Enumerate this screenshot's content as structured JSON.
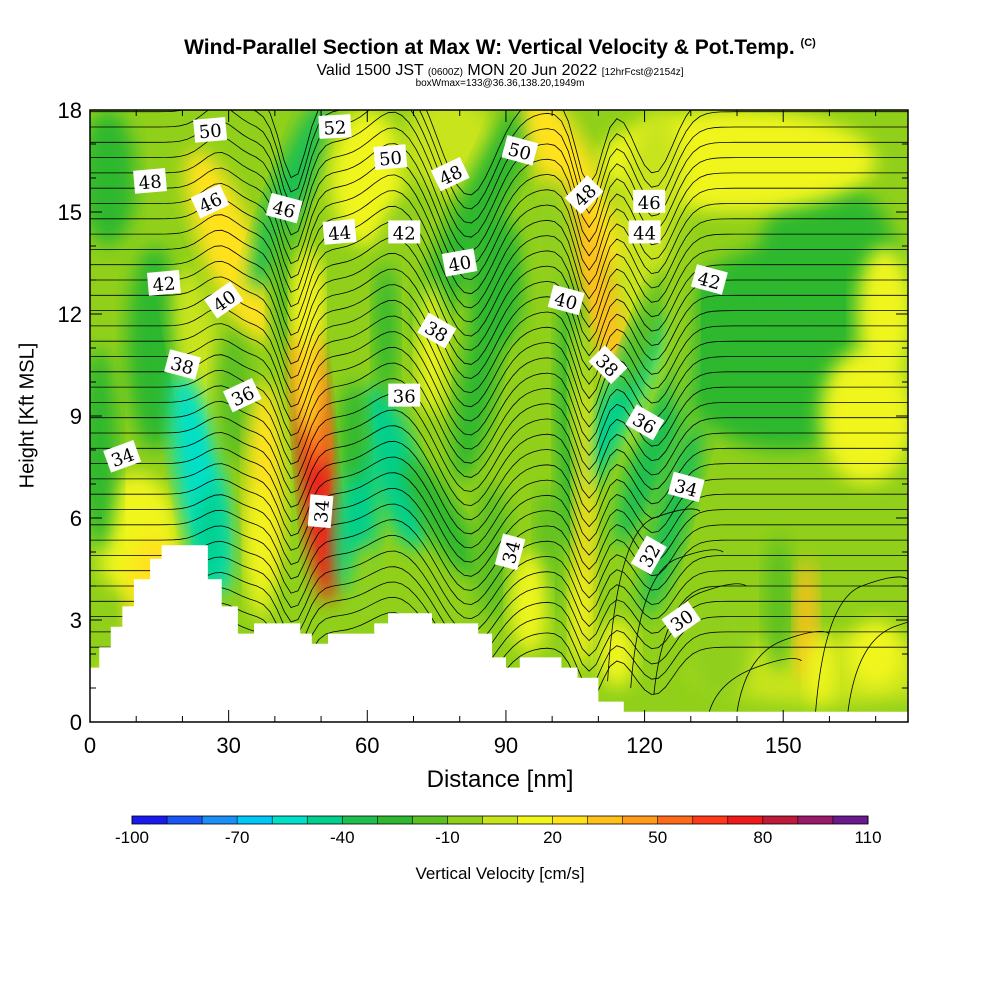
{
  "title": "Wind-Parallel Section at Max W: Vertical Velocity & Pot.Temp.",
  "title_mark": "(C)",
  "subtitle_prefix": "Valid 1500 JST",
  "subtitle_utc": "(0600Z)",
  "subtitle_date": "MON 20 Jun 2022",
  "subtitle_fcst": "[12hrFcst@2154z]",
  "subtitle2": "boxWmax=133@36.36,138.20,1949m",
  "chart_data": {
    "type": "heatmap",
    "title": "Wind-Parallel Section at Max W: Vertical Velocity & Pot.Temp.",
    "xlabel": "Distance [nm]",
    "ylabel": "Height [Kft MSL]",
    "xlim": [
      0,
      177
    ],
    "ylim": [
      0,
      18
    ],
    "x_ticks": [
      "0",
      "30",
      "60",
      "90",
      "120",
      "150"
    ],
    "x_tick_values": [
      0,
      30,
      60,
      90,
      120,
      150
    ],
    "y_ticks": [
      "0",
      "3",
      "6",
      "9",
      "12",
      "15",
      "18"
    ],
    "y_tick_values": [
      0,
      3,
      6,
      9,
      12,
      15,
      18
    ],
    "colorbar": {
      "title": "Vertical Velocity [cm/s]",
      "tick_labels": [
        "-100",
        "-70",
        "-40",
        "-10",
        "20",
        "50",
        "80",
        "110"
      ],
      "levels": [
        -100,
        -90,
        -80,
        -70,
        -60,
        -50,
        -40,
        -30,
        -20,
        -10,
        0,
        10,
        20,
        30,
        40,
        50,
        60,
        70,
        80,
        90,
        100,
        110
      ],
      "colors": [
        "#1a1aef",
        "#1a55f5",
        "#1a8ff8",
        "#00c8f8",
        "#00e0c8",
        "#00d08c",
        "#1fbf4f",
        "#2fb82f",
        "#5cc020",
        "#90d01a",
        "#c8e41a",
        "#f0f51a",
        "#ffe21a",
        "#ffc01a",
        "#ff9a1a",
        "#ff6a1a",
        "#ff3a1a",
        "#ef1a1a",
        "#c01a3a",
        "#9a1a6a",
        "#6a1a8f"
      ]
    },
    "terrain_kft": [
      [
        0,
        1.6
      ],
      [
        2,
        1.6
      ],
      [
        2,
        2.2
      ],
      [
        4.5,
        2.2
      ],
      [
        4.5,
        2.8
      ],
      [
        7,
        2.8
      ],
      [
        7,
        3.4
      ],
      [
        9.5,
        3.4
      ],
      [
        9.5,
        4.2
      ],
      [
        13,
        4.2
      ],
      [
        13,
        4.8
      ],
      [
        15.5,
        4.8
      ],
      [
        15.5,
        5.2
      ],
      [
        25.5,
        5.2
      ],
      [
        25.5,
        4.2
      ],
      [
        28.5,
        4.2
      ],
      [
        28.5,
        3.4
      ],
      [
        32,
        3.4
      ],
      [
        32,
        2.6
      ],
      [
        35.5,
        2.6
      ],
      [
        35.5,
        2.9
      ],
      [
        45.5,
        2.9
      ],
      [
        45.5,
        2.6
      ],
      [
        48,
        2.6
      ],
      [
        48,
        2.3
      ],
      [
        51.5,
        2.3
      ],
      [
        51.5,
        2.6
      ],
      [
        61.5,
        2.6
      ],
      [
        61.5,
        2.9
      ],
      [
        64.5,
        2.9
      ],
      [
        64.5,
        3.2
      ],
      [
        74,
        3.2
      ],
      [
        74,
        2.9
      ],
      [
        84,
        2.9
      ],
      [
        84,
        2.6
      ],
      [
        87,
        2.6
      ],
      [
        87,
        1.9
      ],
      [
        90,
        1.9
      ],
      [
        90,
        1.6
      ],
      [
        93,
        1.6
      ],
      [
        93,
        1.9
      ],
      [
        102,
        1.9
      ],
      [
        102,
        1.6
      ],
      [
        105.5,
        1.6
      ],
      [
        105.5,
        1.3
      ],
      [
        110,
        1.3
      ],
      [
        110,
        0.6
      ],
      [
        115.5,
        0.6
      ],
      [
        115.5,
        0.3
      ],
      [
        177,
        0.3
      ]
    ],
    "theta_contour_labels": [
      {
        "text": "50",
        "x": 26,
        "y": 17.4,
        "rot": -5
      },
      {
        "text": "52",
        "x": 53,
        "y": 17.5,
        "rot": -3
      },
      {
        "text": "50",
        "x": 65,
        "y": 16.6,
        "rot": -5
      },
      {
        "text": "50",
        "x": 93,
        "y": 16.8,
        "rot": 15
      },
      {
        "text": "48",
        "x": 13,
        "y": 15.9,
        "rot": -5
      },
      {
        "text": "46",
        "x": 26,
        "y": 15.3,
        "rot": -25
      },
      {
        "text": "46",
        "x": 42,
        "y": 15.1,
        "rot": 15
      },
      {
        "text": "48",
        "x": 78,
        "y": 16.1,
        "rot": -25
      },
      {
        "text": "48",
        "x": 107,
        "y": 15.5,
        "rot": -45
      },
      {
        "text": "46",
        "x": 121,
        "y": 15.3,
        "rot": 0
      },
      {
        "text": "44",
        "x": 54,
        "y": 14.4,
        "rot": -5
      },
      {
        "text": "42",
        "x": 68,
        "y": 14.4,
        "rot": 0
      },
      {
        "text": "44",
        "x": 120,
        "y": 14.4,
        "rot": 0
      },
      {
        "text": "40",
        "x": 80,
        "y": 13.5,
        "rot": -10
      },
      {
        "text": "42",
        "x": 16,
        "y": 12.9,
        "rot": -5
      },
      {
        "text": "40",
        "x": 29,
        "y": 12.4,
        "rot": -35
      },
      {
        "text": "42",
        "x": 134,
        "y": 13.0,
        "rot": 15
      },
      {
        "text": "40",
        "x": 103,
        "y": 12.4,
        "rot": 15
      },
      {
        "text": "38",
        "x": 75,
        "y": 11.5,
        "rot": 30
      },
      {
        "text": "38",
        "x": 20,
        "y": 10.5,
        "rot": 15
      },
      {
        "text": "38",
        "x": 112,
        "y": 10.5,
        "rot": 45
      },
      {
        "text": "36",
        "x": 33,
        "y": 9.6,
        "rot": -25
      },
      {
        "text": "36",
        "x": 68,
        "y": 9.6,
        "rot": 0
      },
      {
        "text": "36",
        "x": 120,
        "y": 8.8,
        "rot": 30
      },
      {
        "text": "34",
        "x": 7,
        "y": 7.8,
        "rot": -20
      },
      {
        "text": "34",
        "x": 129,
        "y": 6.9,
        "rot": 15
      },
      {
        "text": "34",
        "x": 50,
        "y": 6.2,
        "rot": -85
      },
      {
        "text": "34",
        "x": 91,
        "y": 5.0,
        "rot": -75
      },
      {
        "text": "32",
        "x": 121,
        "y": 4.9,
        "rot": -60
      },
      {
        "text": "30",
        "x": 128,
        "y": 3.0,
        "rot": -35
      }
    ]
  },
  "axes": {
    "xlabel": "Distance [nm]",
    "ylabel": "Height [Kft MSL]",
    "colorbar_title": "Vertical Velocity [cm/s]"
  }
}
